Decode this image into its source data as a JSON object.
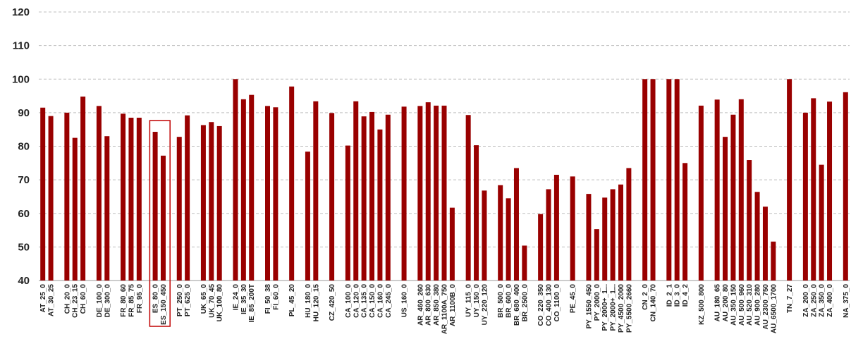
{
  "chart_data": {
    "type": "bar",
    "title": "",
    "xlabel": "",
    "ylabel": "",
    "ylim": [
      40,
      120
    ],
    "yticks": [
      40,
      50,
      60,
      70,
      80,
      90,
      100,
      110,
      120
    ],
    "grid": true,
    "bar_color": "#990000",
    "grid_color": "#bfbfbf",
    "highlight_color": "#c00000",
    "highlight_categories": [
      "ES_80_0",
      "ES_150_450"
    ],
    "categories": [
      "AT_25_0",
      "AT_30_25",
      null,
      "CH_20_0",
      "CH_23_15",
      "CH_60_0",
      null,
      "DE_100_0",
      "DE_300_0",
      null,
      "FR_80_60",
      "FR_85_75",
      "FR_95_0",
      null,
      "ES_80_0",
      "ES_150_450",
      null,
      "PT_250_0",
      "PT_625_0",
      null,
      "UK_65_0",
      "UK_70_45",
      "UK_100_80",
      null,
      "IE_24_0",
      "IE_35_30",
      "IE_85_200T",
      null,
      "FI_50_38",
      "FI_60_0",
      null,
      "PL_45_20",
      null,
      "HU_180_0",
      "HU_120_15",
      null,
      "CZ_420_50",
      null,
      "CA_100_0",
      "CA_120_0",
      "CA_135_0",
      "CA_150_0",
      "CA_160_0",
      "CA_245_0",
      null,
      "US_160_0",
      null,
      "AR_460_260",
      "AR_800_630",
      "AR_850_380",
      "AR_1100A_750",
      "AR_1100B_0",
      null,
      "UY_115_0",
      "UY_150_0",
      "UY_220_120",
      null,
      "BR_500_0",
      "BR_600_0",
      "BR_680_400",
      "BR_2500_0",
      null,
      "CO_220_350",
      "CO_400_130",
      "CO_1100_0",
      null,
      "PE_45_0",
      null,
      "PY_1550_450",
      "PY_2000_0",
      "PY_2000+_1...",
      "PY_2000+_1...",
      "PY_4500_2000",
      "PY_5500_2660",
      null,
      "CN_2_0",
      "CN_140_70",
      null,
      "ID_2_1",
      "ID_3_0",
      "ID_4_2",
      null,
      "KZ_500_800",
      null,
      "AU_180_65",
      "AU_200_80",
      "AU_350_150",
      "AU_500_960",
      "AU_520_310",
      "AU_900_280",
      "AU_2300_750",
      "AU_6500_1700",
      null,
      "TN_7_27",
      null,
      "ZA_200_0",
      "ZA_250_0",
      "ZA_350_0",
      "ZA_400_0",
      null,
      "NA_375_0"
    ],
    "values": [
      91.5,
      89,
      null,
      90,
      82.5,
      94.8,
      null,
      92,
      83,
      null,
      89.7,
      88.5,
      88.5,
      null,
      84.3,
      77.2,
      null,
      82.8,
      89.2,
      null,
      86.3,
      87.2,
      86,
      null,
      100,
      94,
      95.3,
      null,
      92,
      91.6,
      null,
      97.8,
      null,
      78.4,
      93.4,
      null,
      89.9,
      null,
      80.2,
      93.4,
      88.9,
      90.2,
      85,
      89.4,
      null,
      91.8,
      null,
      92,
      93.1,
      92.1,
      92.1,
      61.7,
      null,
      89.3,
      80.3,
      66.8,
      null,
      68.4,
      64.5,
      73.5,
      50.4,
      null,
      59.8,
      67.2,
      71.5,
      null,
      71,
      null,
      65.8,
      55.3,
      64.7,
      67.2,
      68.6,
      73.5,
      null,
      100,
      100,
      null,
      100,
      100,
      75,
      null,
      92.1,
      null,
      93.9,
      82.8,
      89.4,
      94,
      75.9,
      66.4,
      62,
      51.6,
      null,
      100,
      null,
      90,
      94.3,
      74.5,
      93.3,
      null,
      96.1
    ]
  }
}
